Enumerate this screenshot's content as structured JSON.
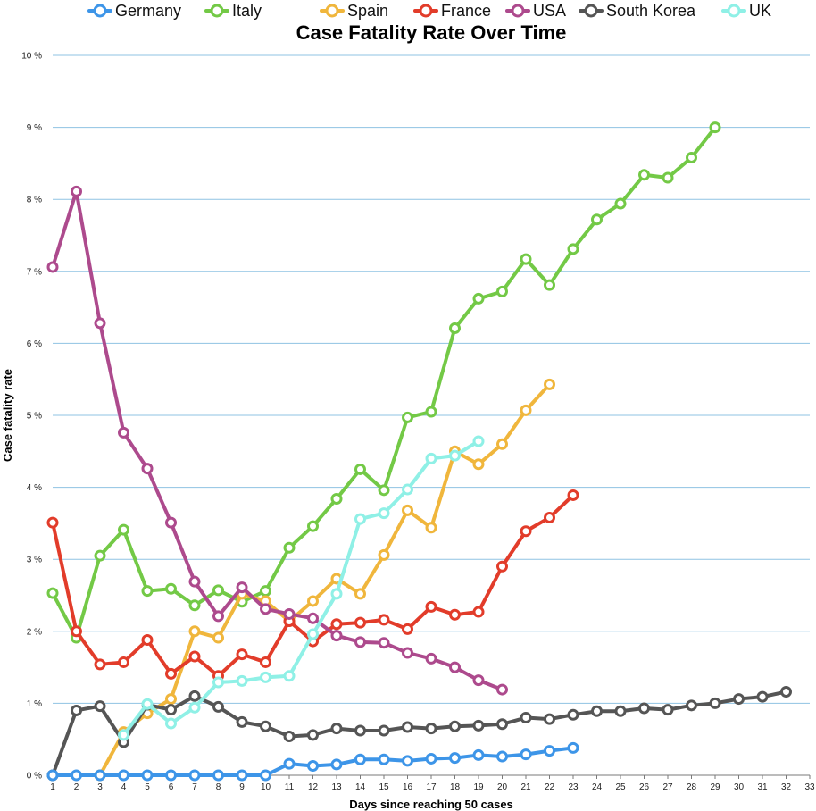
{
  "chart_data": {
    "type": "line",
    "title": "Case Fatality Rate Over Time",
    "xlabel": "Days since reaching 50 cases",
    "ylabel": "Case fatality rate",
    "xlim": [
      1,
      33
    ],
    "ylim": [
      0,
      10
    ],
    "x_ticks": [
      "1",
      "2",
      "3",
      "4",
      "5",
      "6",
      "7",
      "8",
      "9",
      "10",
      "11",
      "12",
      "13",
      "14",
      "15",
      "16",
      "17",
      "18",
      "19",
      "20",
      "21",
      "22",
      "23",
      "24",
      "25",
      "26",
      "27",
      "28",
      "29",
      "30",
      "31",
      "32",
      "33"
    ],
    "y_ticks": [
      "0 %",
      "1 %",
      "2 %",
      "3 %",
      "4 %",
      "5 %",
      "6 %",
      "7 %",
      "8 %",
      "9 %",
      "10 %"
    ],
    "grid": true,
    "legend_position": "top",
    "series": [
      {
        "name": "Germany",
        "color": "#3d95e8",
        "values": [
          0,
          0,
          0,
          0,
          0,
          0,
          0,
          0,
          0,
          0,
          0.16,
          0.13,
          0.15,
          0.22,
          0.22,
          0.2,
          0.23,
          0.24,
          0.28,
          0.26,
          0.29,
          0.34,
          0.38
        ]
      },
      {
        "name": "Italy",
        "color": "#73c946",
        "values": [
          2.53,
          1.91,
          3.05,
          3.41,
          2.56,
          2.59,
          2.36,
          2.57,
          2.41,
          2.56,
          3.16,
          3.46,
          3.84,
          4.25,
          3.96,
          4.97,
          5.05,
          6.21,
          6.62,
          6.72,
          7.17,
          6.81,
          7.31,
          7.72,
          7.94,
          8.34,
          8.3,
          8.58,
          9.0
        ]
      },
      {
        "name": "Spain",
        "color": "#f0b63c",
        "values": [
          null,
          null,
          0,
          0.6,
          0.86,
          1.06,
          2.0,
          1.91,
          2.52,
          2.42,
          2.14,
          2.42,
          2.73,
          2.52,
          3.06,
          3.68,
          3.44,
          4.5,
          4.32,
          4.6,
          5.07,
          5.43
        ]
      },
      {
        "name": "France",
        "color": "#e23c2a",
        "values": [
          3.51,
          2.0,
          1.54,
          1.57,
          1.88,
          1.41,
          1.65,
          1.38,
          1.68,
          1.57,
          2.14,
          1.86,
          2.1,
          2.12,
          2.16,
          2.03,
          2.34,
          2.23,
          2.27,
          2.9,
          3.39,
          3.58,
          3.89
        ]
      },
      {
        "name": "USA",
        "color": "#ad4a8d",
        "values": [
          7.06,
          8.11,
          6.28,
          4.76,
          4.26,
          3.51,
          2.69,
          2.21,
          2.61,
          2.31,
          2.24,
          2.18,
          1.94,
          1.85,
          1.84,
          1.7,
          1.62,
          1.5,
          1.32,
          1.19
        ]
      },
      {
        "name": "South Korea",
        "color": "#555555",
        "values": [
          0,
          0.9,
          0.96,
          0.46,
          0.98,
          0.91,
          1.1,
          0.95,
          0.74,
          0.68,
          0.54,
          0.56,
          0.65,
          0.62,
          0.62,
          0.67,
          0.65,
          0.68,
          0.69,
          0.71,
          0.8,
          0.78,
          0.84,
          0.89,
          0.89,
          0.93,
          0.91,
          0.97,
          1.0,
          1.06,
          1.09,
          1.16
        ]
      },
      {
        "name": "UK",
        "color": "#8ff0e6",
        "values": [
          null,
          null,
          null,
          0.56,
          0.99,
          0.72,
          0.94,
          1.29,
          1.31,
          1.36,
          1.38,
          1.96,
          2.52,
          3.56,
          3.64,
          3.97,
          4.4,
          4.44,
          4.64
        ]
      }
    ]
  }
}
